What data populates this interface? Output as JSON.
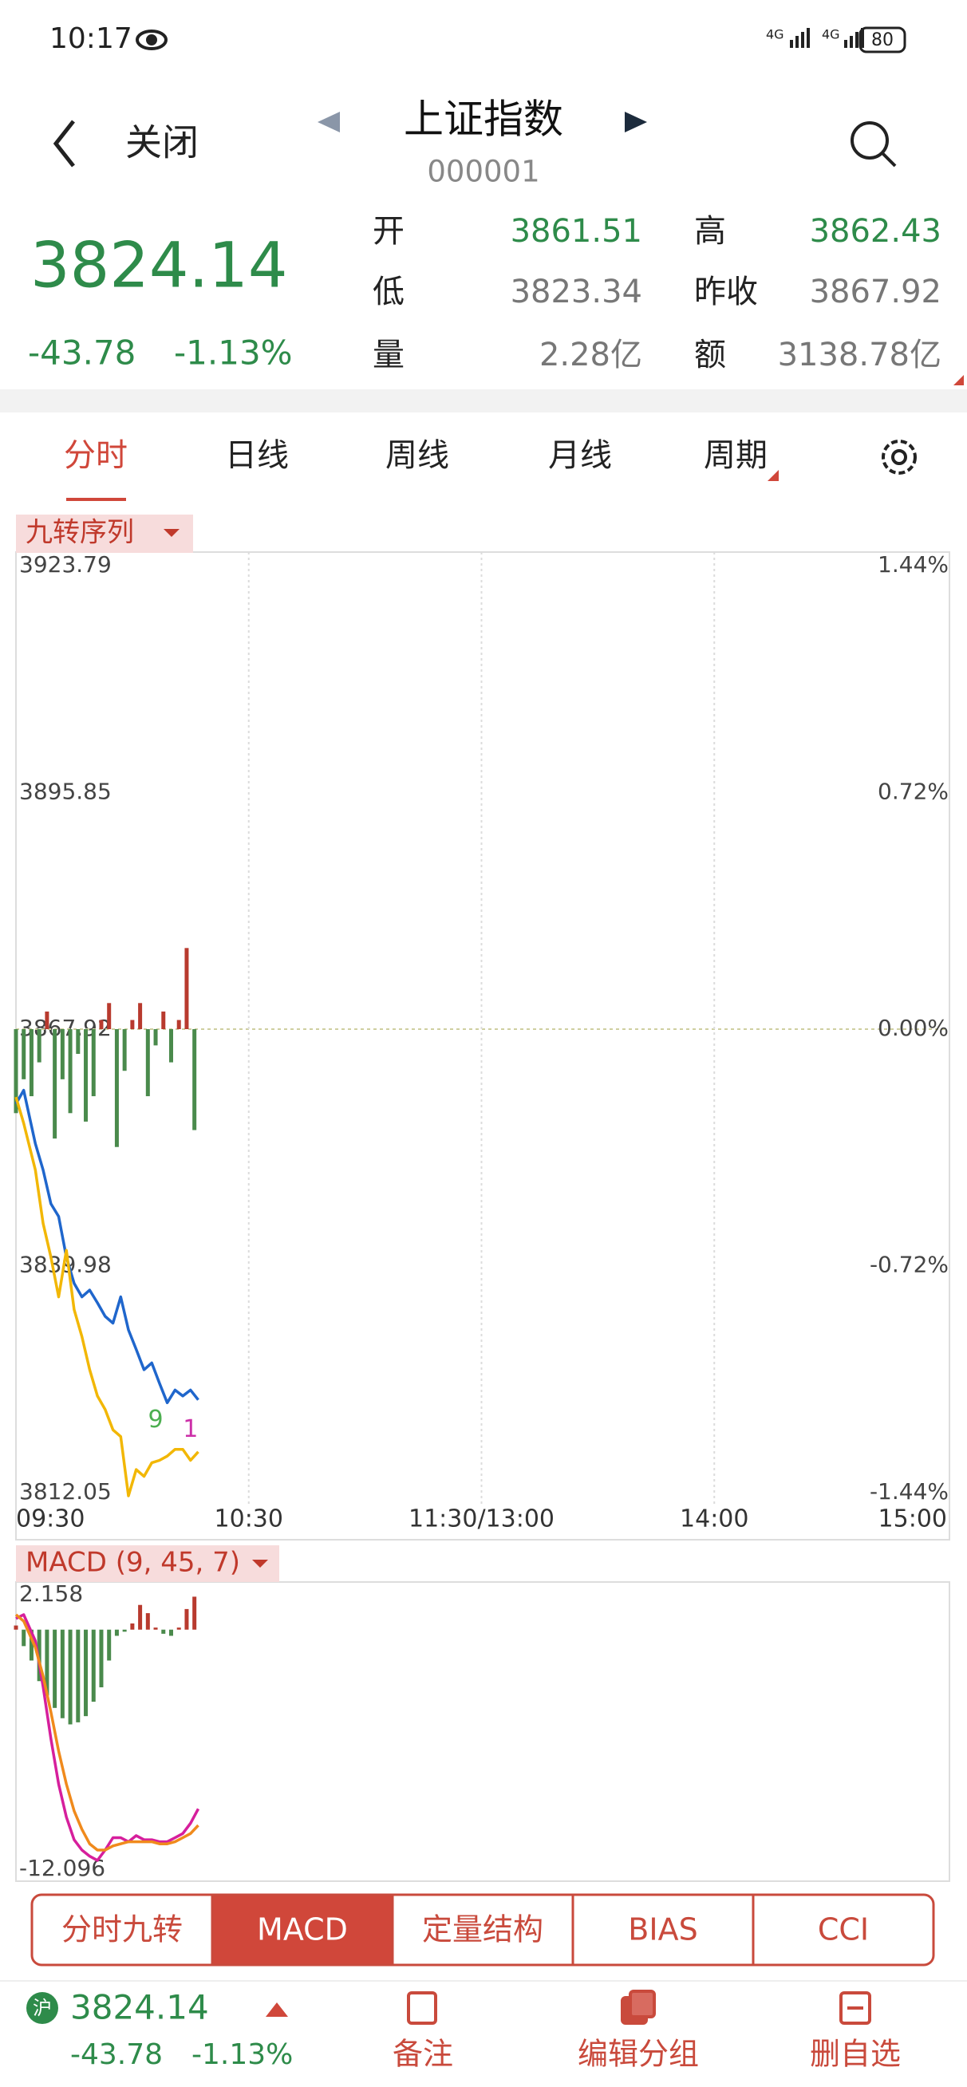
{
  "status_bar": {
    "time": "10:17",
    "network": [
      "4G",
      "4G"
    ],
    "battery": "80"
  },
  "header": {
    "back": "关闭",
    "title": "上证指数",
    "code": "000001"
  },
  "quote": {
    "price": "3824.14",
    "change": "-43.78",
    "change_pct": "-1.13%",
    "fields": [
      {
        "label": "开",
        "value": "3861.51",
        "color": "#2e8b4a"
      },
      {
        "label": "高",
        "value": "3862.43",
        "color": "#2e8b4a"
      },
      {
        "label": "低",
        "value": "3823.34",
        "color": "#777777"
      },
      {
        "label": "昨收",
        "value": "3867.92",
        "color": "#777777"
      },
      {
        "label": "量",
        "value": "2.28亿",
        "color": "#777777"
      },
      {
        "label": "额",
        "value": "3138.78亿",
        "color": "#777777"
      }
    ]
  },
  "period_tabs": [
    "分时",
    "日线",
    "周线",
    "月线",
    "周期"
  ],
  "chart_data": [
    {
      "type": "line",
      "title": "九转序列",
      "x": [
        0,
        2,
        5,
        7,
        9,
        11,
        13,
        15,
        17,
        19,
        21,
        23,
        25,
        27,
        29,
        31,
        33,
        35,
        37,
        39,
        41,
        43,
        45,
        47
      ],
      "xlim": [
        0,
        240
      ],
      "xticks": [
        {
          "value": 0,
          "label": "09:30"
        },
        {
          "value": 60,
          "label": "10:30"
        },
        {
          "value": 120,
          "label": "11:30/13:00"
        },
        {
          "value": 180,
          "label": "14:00"
        },
        {
          "value": 240,
          "label": "15:00"
        }
      ],
      "ylim": [
        3812.05,
        3923.79
      ],
      "yticks": [
        3812.05,
        3839.98,
        3867.92,
        3895.85,
        3923.79
      ],
      "y2lim": [
        -1.44,
        1.44
      ],
      "y2ticks": [
        {
          "value": -1.44,
          "label": "-1.44%"
        },
        {
          "value": -0.72,
          "label": "-0.72%"
        },
        {
          "value": 0,
          "label": "0.00%"
        },
        {
          "value": 0.72,
          "label": "0.72%"
        },
        {
          "value": 1.44,
          "label": "1.44%"
        }
      ],
      "series": [
        {
          "color": "#1f66cc",
          "values": [
            3859.1,
            3860.7,
            3854.4,
            3851.3,
            3847.3,
            3845.8,
            3841.0,
            3837.9,
            3836.3,
            3837.1,
            3835.6,
            3834.0,
            3833.2,
            3836.3,
            3832.4,
            3830.1,
            3827.7,
            3828.5,
            3826.1,
            3823.8,
            3825.3,
            3824.6,
            3825.3,
            3824.14
          ]
        },
        {
          "color": "#f2b705",
          "values": [
            3859.9,
            3856.8,
            3851.3,
            3845.0,
            3841.0,
            3836.3,
            3841.8,
            3834.8,
            3831.6,
            3827.7,
            3824.6,
            3823.0,
            3820.6,
            3819.8,
            3812.8,
            3815.9,
            3815.1,
            3816.7,
            3817.0,
            3817.5,
            3818.3,
            3818.3,
            3817.0,
            3818.0
          ]
        }
      ],
      "bars": {
        "x": [
          0,
          2,
          4,
          6,
          8,
          10,
          12,
          14,
          16,
          18,
          20,
          22,
          24,
          26,
          28,
          30,
          32,
          34,
          36,
          38,
          40,
          42,
          44,
          46
        ],
        "values": [
          3858,
          3862,
          3860,
          3864,
          3870,
          3855,
          3862,
          3858,
          3865,
          3857,
          3860,
          3869,
          3871,
          3854,
          3863,
          3869,
          3871,
          3860,
          3866,
          3870,
          3864,
          3869,
          3877.5,
          3856
        ],
        "up_color": "#b83a2e",
        "down_color": "#4a8a4c"
      },
      "annotations": [
        {
          "label": "9",
          "x": 36,
          "y": 3821.7,
          "color": "#4caf50"
        },
        {
          "label": "1",
          "x": 45,
          "y": 3820.6,
          "color": "#cc2fa8"
        }
      ]
    },
    {
      "type": "line",
      "title": "MACD (9, 45, 7)",
      "x": [
        0,
        2,
        5,
        7,
        9,
        11,
        13,
        15,
        17,
        19,
        21,
        23,
        25,
        27,
        29,
        31,
        33,
        35,
        37,
        39,
        41,
        43,
        45,
        47
      ],
      "xlim": [
        0,
        240
      ],
      "ylim": [
        -12.096,
        2.158
      ],
      "yticks": [
        -12.096,
        2.158
      ],
      "series": [
        {
          "color": "#d61f9c",
          "values": [
            0.54,
            0.73,
            -0.54,
            -2.76,
            -5.3,
            -7.5,
            -9.1,
            -10.2,
            -10.7,
            -11.0,
            -11.2,
            -10.7,
            -10.1,
            -10.1,
            -10.3,
            -10.0,
            -10.2,
            -10.2,
            -10.3,
            -10.3,
            -10.1,
            -9.9,
            -9.4,
            -8.7
          ]
        },
        {
          "color": "#f08a1c",
          "values": [
            0.73,
            0.41,
            -0.86,
            -2.25,
            -4.0,
            -5.9,
            -7.5,
            -8.8,
            -9.7,
            -10.4,
            -10.7,
            -10.7,
            -10.5,
            -10.4,
            -10.3,
            -10.3,
            -10.3,
            -10.3,
            -10.4,
            -10.4,
            -10.3,
            -10.1,
            -9.9,
            -9.5
          ]
        }
      ],
      "bars": {
        "x": [
          0,
          2,
          4,
          6,
          8,
          10,
          12,
          14,
          16,
          18,
          20,
          22,
          24,
          26,
          28,
          30,
          32,
          34,
          36,
          38,
          40,
          42,
          44,
          46
        ],
        "values": [
          0.2,
          -0.8,
          -1.5,
          -2.5,
          -3.2,
          -3.8,
          -4.3,
          -4.6,
          -4.5,
          -4.2,
          -3.5,
          -2.8,
          -1.5,
          -0.3,
          -0.1,
          0.3,
          1.2,
          0.8,
          0.1,
          -0.2,
          -0.3,
          0.1,
          1.0,
          1.6
        ],
        "up_color": "#b83a2e",
        "down_color": "#4a8a4c"
      }
    }
  ],
  "indicator_tabs": [
    "分时九转",
    "MACD",
    "定量结构",
    "BIAS",
    "CCI"
  ],
  "footer": {
    "market": "沪",
    "price": "3824.14",
    "change": "-43.78",
    "change_pct": "-1.13%",
    "actions": [
      "备注",
      "编辑分组",
      "删自选"
    ]
  }
}
